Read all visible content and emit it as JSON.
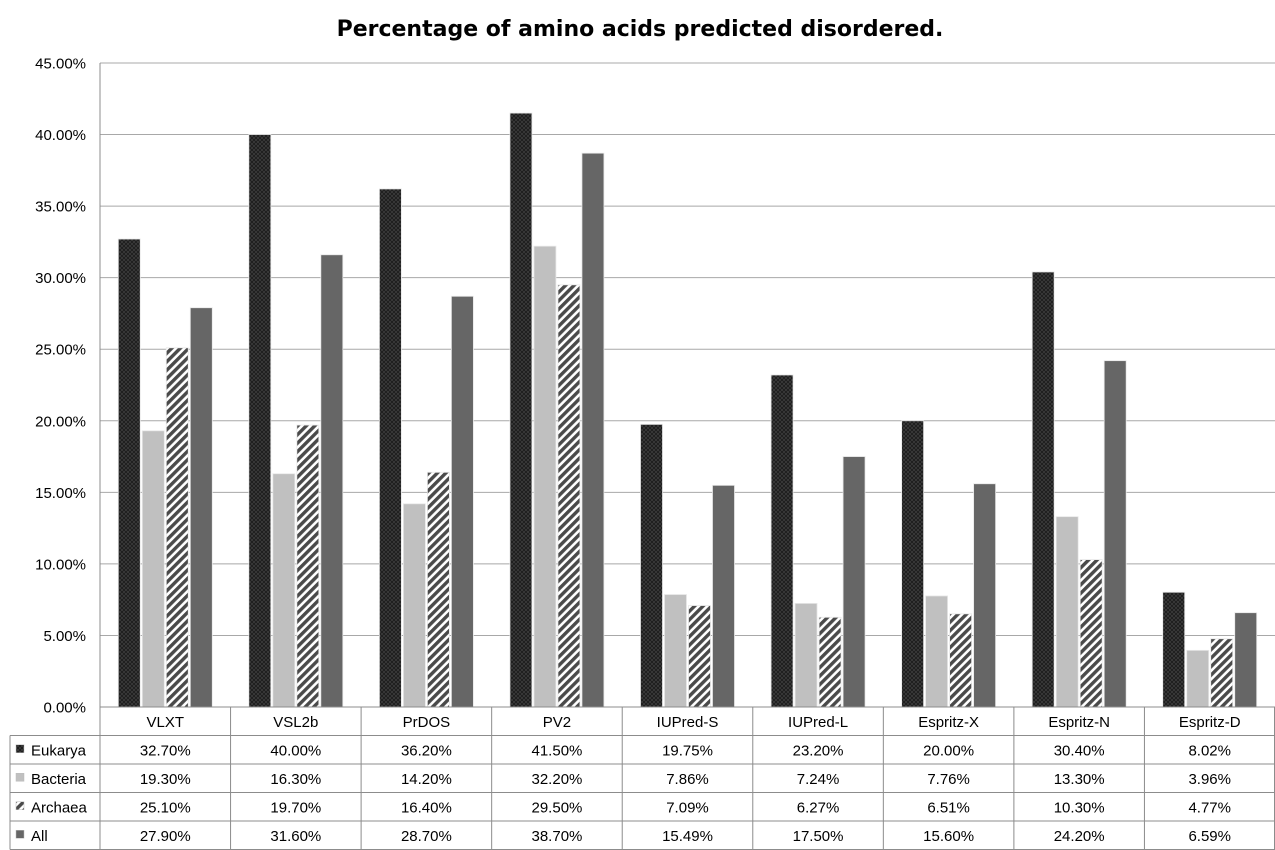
{
  "chart_data": {
    "type": "bar",
    "title": "Percentage of amino acids predicted disordered.",
    "xlabel": "",
    "ylabel": "",
    "ylim": [
      0,
      45
    ],
    "y_ticks": [
      "0.00%",
      "5.00%",
      "10.00%",
      "15.00%",
      "20.00%",
      "25.00%",
      "30.00%",
      "35.00%",
      "40.00%",
      "45.00%"
    ],
    "categories": [
      "VLXT",
      "VSL2b",
      "PrDOS",
      "PV2",
      "IUPred-S",
      "IUPred-L",
      "Espritz-X",
      "Espritz-N",
      "Espritz-D"
    ],
    "grid": true,
    "legend": "data-table",
    "series": [
      {
        "name": "Eukarya",
        "pattern": "black-crosshatch",
        "color": "#111111",
        "values": [
          32.7,
          40.0,
          36.2,
          41.5,
          19.75,
          23.2,
          20.0,
          30.4,
          8.02
        ],
        "labels": [
          "32.70%",
          "40.00%",
          "36.20%",
          "41.50%",
          "19.75%",
          "23.20%",
          "20.00%",
          "30.40%",
          "8.02%"
        ]
      },
      {
        "name": "Bacteria",
        "pattern": "solid",
        "color": "#c0c0c0",
        "values": [
          19.3,
          16.3,
          14.2,
          32.2,
          7.86,
          7.24,
          7.76,
          13.3,
          3.96
        ],
        "labels": [
          "19.30%",
          "16.30%",
          "14.20%",
          "32.20%",
          "7.86%",
          "7.24%",
          "7.76%",
          "13.30%",
          "3.96%"
        ]
      },
      {
        "name": "Archaea",
        "pattern": "diagonal-stripes",
        "color": "#555555",
        "values": [
          25.1,
          19.7,
          16.4,
          29.5,
          7.09,
          6.27,
          6.51,
          10.3,
          4.77
        ],
        "labels": [
          "25.10%",
          "19.70%",
          "16.40%",
          "29.50%",
          "7.09%",
          "6.27%",
          "6.51%",
          "10.30%",
          "4.77%"
        ]
      },
      {
        "name": "All",
        "pattern": "solid",
        "color": "#666666",
        "values": [
          27.9,
          31.6,
          28.7,
          38.7,
          15.49,
          17.5,
          15.6,
          24.2,
          6.59
        ],
        "labels": [
          "27.90%",
          "31.60%",
          "28.70%",
          "38.70%",
          "15.49%",
          "17.50%",
          "15.60%",
          "24.20%",
          "6.59%"
        ]
      }
    ]
  }
}
